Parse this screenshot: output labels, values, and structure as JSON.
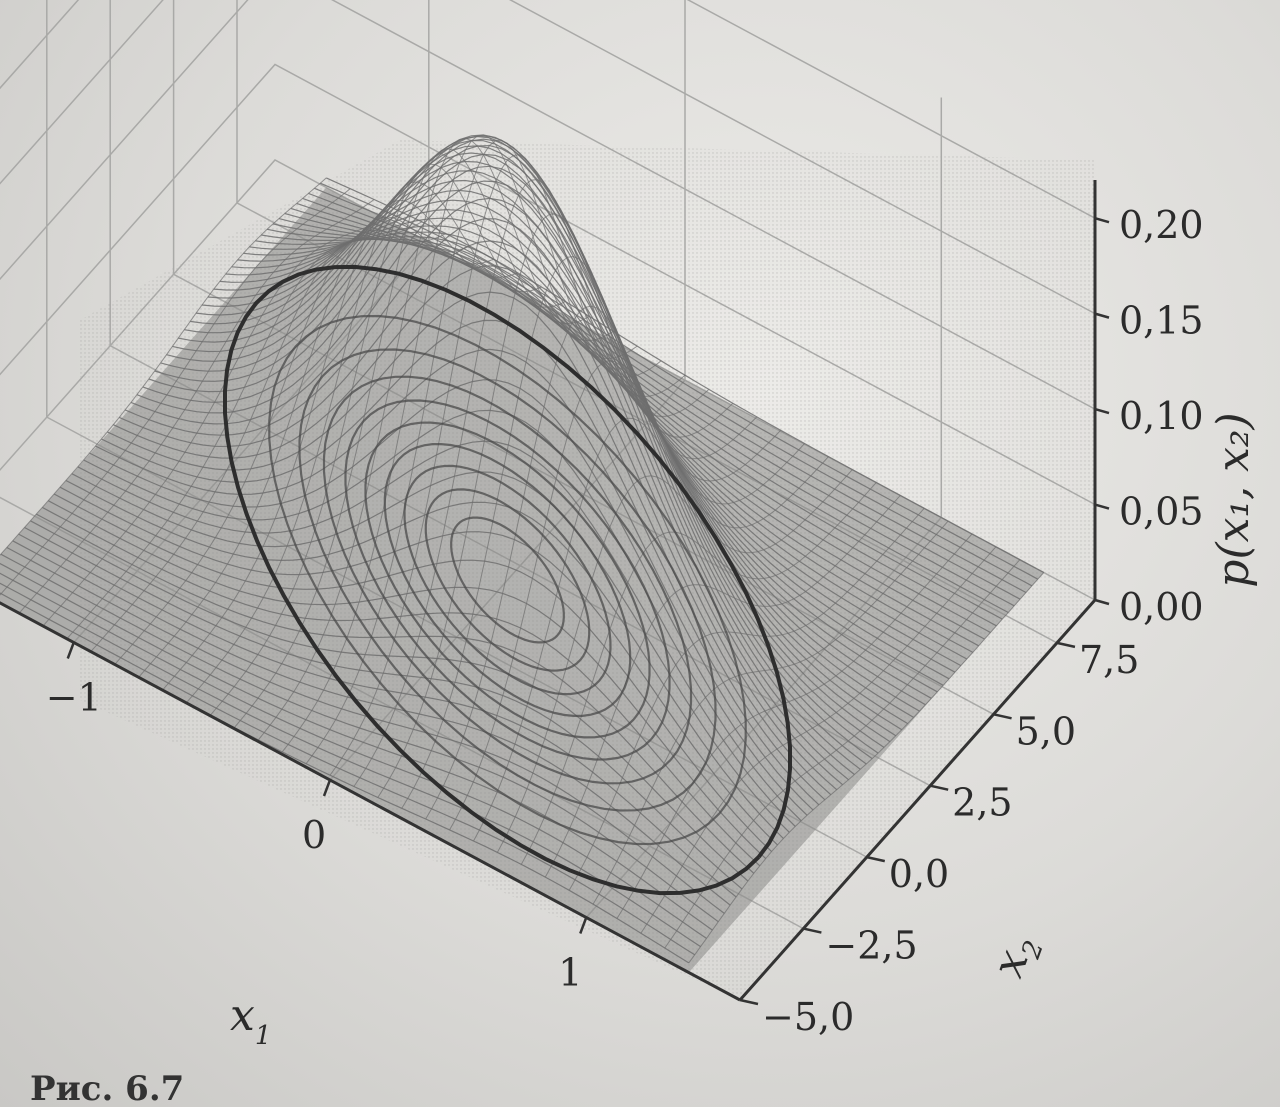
{
  "chart_data": {
    "type": "surface3d",
    "title": "",
    "xlabel_main": "x",
    "xlabel_sub": "1",
    "ylabel_main": "x",
    "ylabel_sub": "2",
    "zlabel": "p(x₁, x₂)",
    "x_ticks": [
      "−1",
      "0",
      "1"
    ],
    "x_tick_values": [
      -1,
      0,
      1
    ],
    "y_ticks": [
      "−5,0",
      "−2,5",
      "0,0",
      "2,5",
      "5,0",
      "7,5"
    ],
    "y_tick_values": [
      -5.0,
      -2.5,
      0.0,
      2.5,
      5.0,
      7.5
    ],
    "z_ticks": [
      "0,00",
      "0,05",
      "0,10",
      "0,15",
      "0,20"
    ],
    "z_tick_values": [
      0.0,
      0.05,
      0.1,
      0.15,
      0.2
    ],
    "xlim": [
      -1.6,
      1.6
    ],
    "ylim": [
      -5.0,
      9.0
    ],
    "zlim": [
      0.0,
      0.22
    ],
    "peak_z": 0.22,
    "surface_color": "#6e6e6e",
    "contour_color": "#4a4a4a",
    "grid": true
  },
  "caption": {
    "text": "Рис. 6.7"
  }
}
